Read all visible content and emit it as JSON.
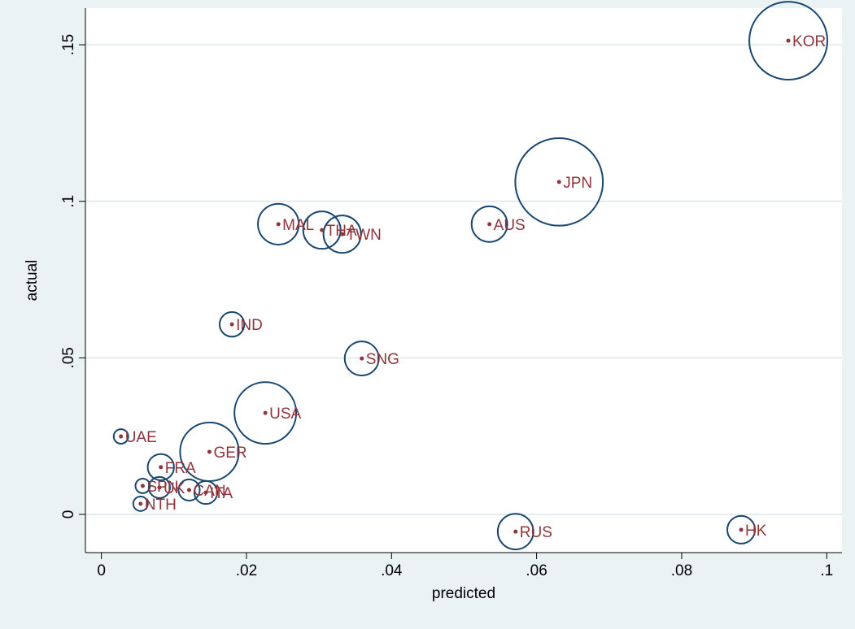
{
  "chart_data": {
    "type": "scatter",
    "x_label": "predicted",
    "y_label": "actual",
    "labels": [
      "KOR",
      "JPN",
      "AUS",
      "MAL",
      "THA",
      "TWN",
      "IND",
      "SNG",
      "USA",
      "GER",
      "UAE",
      "FRA",
      "SPN",
      "UK",
      "CAN",
      "ITA",
      "NTH",
      "RUS",
      "HK"
    ],
    "x": [
      0.0947,
      0.0631,
      0.0535,
      0.0244,
      0.0304,
      0.0332,
      0.018,
      0.0359,
      0.0226,
      0.0149,
      0.0027,
      0.0082,
      0.0057,
      0.008,
      0.0121,
      0.0144,
      0.0054,
      0.0571,
      0.0882
    ],
    "y": [
      0.1513,
      0.1062,
      0.0927,
      0.0927,
      0.0908,
      0.0895,
      0.0607,
      0.0498,
      0.0324,
      0.02,
      0.0249,
      0.0151,
      0.0091,
      0.0086,
      0.0078,
      0.007,
      0.0034,
      -0.0055,
      -0.0049
    ],
    "sizes": [
      23,
      29,
      4.8,
      6.3,
      5.3,
      5.3,
      2.3,
      4.4,
      14.4,
      13,
      0.8,
      2.6,
      0.8,
      1.7,
      1.7,
      2,
      0.8,
      4.8,
      2.9
    ],
    "xlim": [
      -0.0022,
      0.1021
    ],
    "ylim": [
      -0.0122,
      0.1617
    ],
    "xticks": [
      0,
      {
        "value": 0.02,
        "label": ".02"
      },
      {
        "value": 0.04,
        "label": ".04"
      },
      {
        "value": 0.06,
        "label": ".06"
      },
      {
        "value": 0.08,
        "label": ".08"
      },
      {
        "value": 0.1,
        "label": ".1"
      }
    ],
    "yticks": [
      0,
      {
        "value": 0.05,
        "label": ".05"
      },
      {
        "value": 0.1,
        "label": ".1"
      },
      {
        "value": 0.15,
        "label": ".15"
      }
    ],
    "grid": true,
    "circle_color": "#1a476f",
    "marker_color": "#90353b"
  }
}
